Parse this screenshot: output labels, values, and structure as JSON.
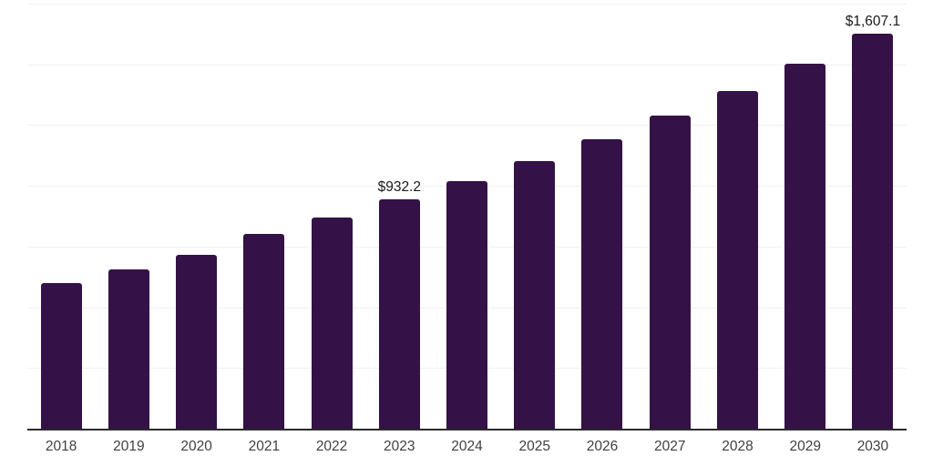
{
  "chart_data": {
    "type": "bar",
    "title": "",
    "xlabel": "",
    "ylabel": "",
    "categories": [
      "2018",
      "2019",
      "2020",
      "2021",
      "2022",
      "2023",
      "2024",
      "2025",
      "2026",
      "2027",
      "2028",
      "2029",
      "2030"
    ],
    "values": [
      594,
      649,
      708,
      793,
      860,
      932.2,
      1007.8,
      1089.2,
      1177.7,
      1272.9,
      1375.9,
      1487.4,
      1607.1
    ],
    "value_labels": [
      "",
      "",
      "",
      "",
      "",
      "$932.2",
      "",
      "",
      "",
      "",
      "",
      "",
      "$1,607.1"
    ],
    "ylim": [
      0,
      1730
    ],
    "grid": "horizontal",
    "gridline_count": 7,
    "legend": "none",
    "bar_color": "#341147"
  },
  "colors": {
    "background": "#ffffff",
    "bar": "#341147",
    "axis_line": "#2b2b2b",
    "gridline": "#f1f1f1",
    "tick_label": "#404040",
    "value_label": "#1a1a1a"
  }
}
